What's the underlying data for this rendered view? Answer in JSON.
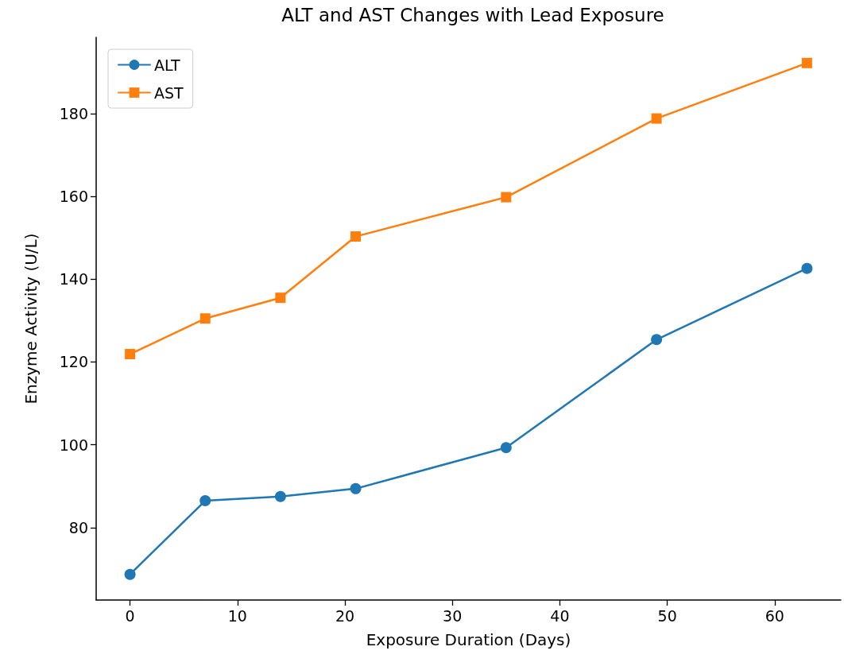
{
  "chart_data": {
    "type": "line",
    "title": "ALT and AST Changes with Lead Exposure",
    "xlabel": "Exposure Duration (Days)",
    "ylabel": "Enzyme Activity (U/L)",
    "x": [
      0,
      7,
      14,
      21,
      35,
      49,
      63
    ],
    "series": [
      {
        "name": "ALT",
        "color": "#1f77b4",
        "marker": "circle",
        "values": [
          68.7,
          86.5,
          87.5,
          89.4,
          99.3,
          125.4,
          142.6
        ]
      },
      {
        "name": "AST",
        "color": "#ff7f0e",
        "marker": "square",
        "values": [
          121.9,
          130.5,
          135.5,
          150.3,
          159.8,
          178.8,
          192.2
        ]
      }
    ],
    "xlim": [
      -3.15,
      66.15
    ],
    "xticks": [
      0,
      10,
      20,
      30,
      40,
      50,
      60
    ],
    "ylim": [
      62.5,
      198.4
    ],
    "yticks": [
      80,
      100,
      120,
      140,
      160,
      180
    ],
    "grid": false,
    "legend": "top left",
    "line_style": "solid"
  }
}
